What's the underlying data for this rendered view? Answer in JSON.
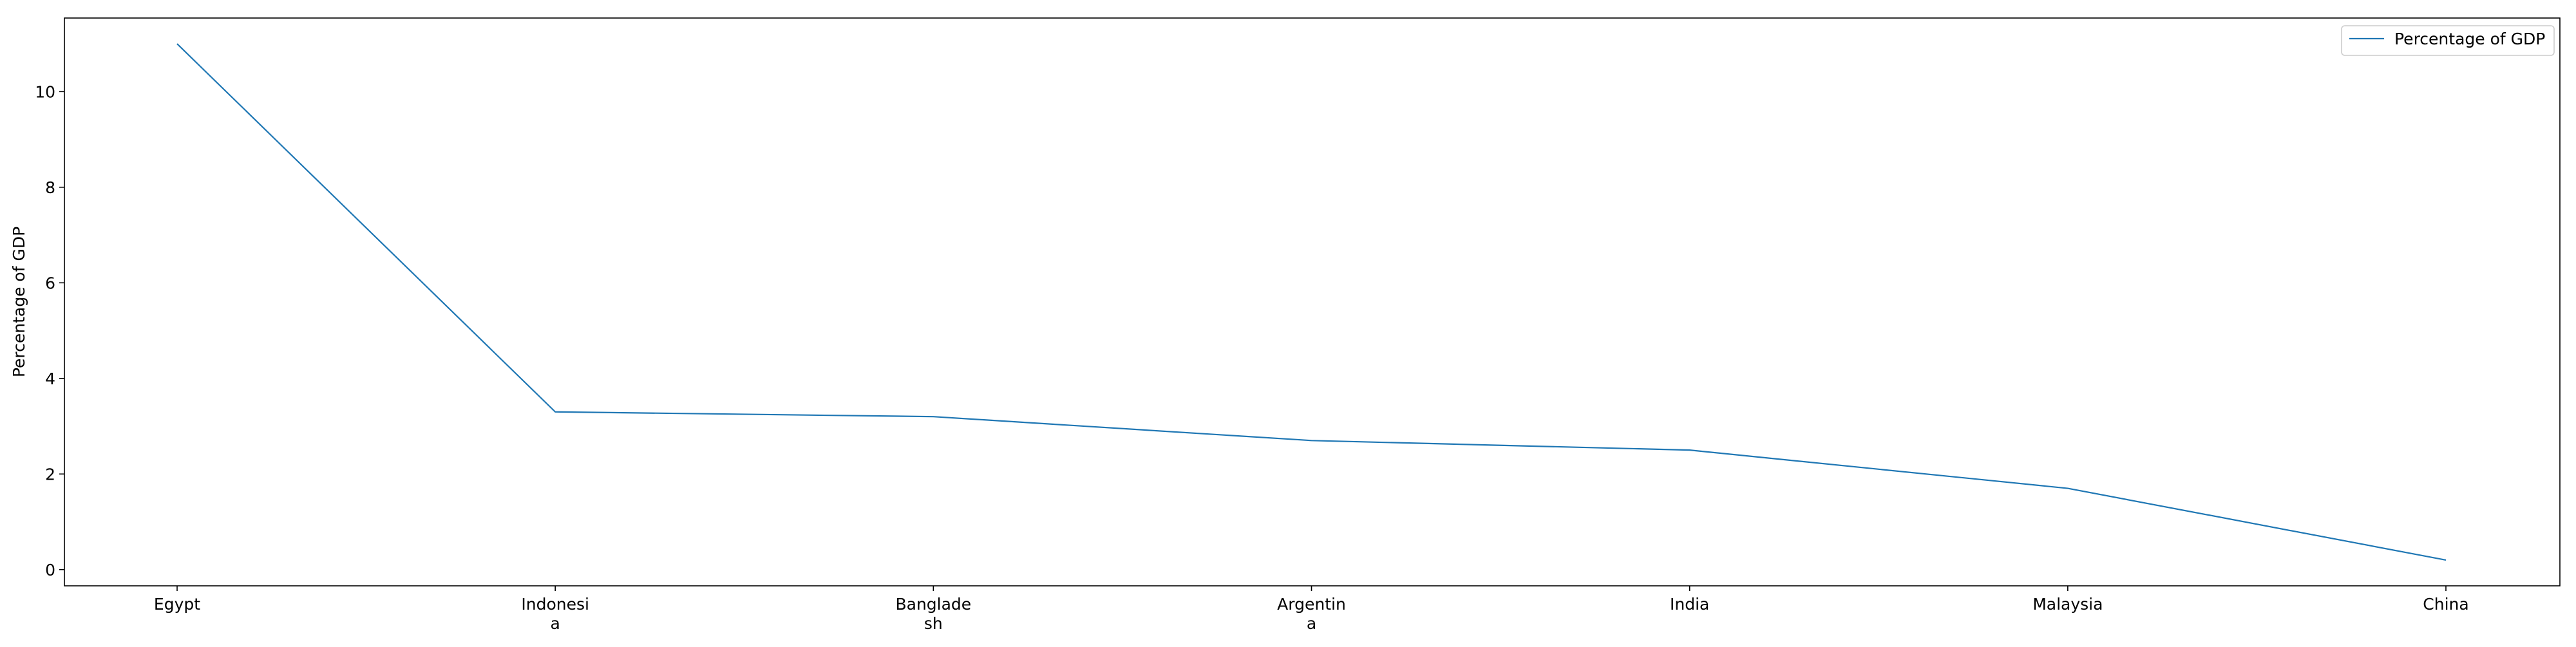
{
  "chart_data": {
    "type": "line",
    "title": "",
    "xlabel": "",
    "ylabel": "Percentage of GDP",
    "categories": [
      [
        "Egypt"
      ],
      [
        "Indonesi",
        "a"
      ],
      [
        "Banglade",
        "sh"
      ],
      [
        "Argentin",
        "a"
      ],
      [
        "India"
      ],
      [
        "Malaysia"
      ],
      [
        "China"
      ]
    ],
    "series": [
      {
        "name": "Percentage of GDP",
        "color": "#1f77b4",
        "values": [
          11.0,
          3.3,
          3.2,
          2.7,
          2.5,
          1.7,
          0.2
        ]
      }
    ],
    "ylim": [
      -0.34,
      11.54
    ],
    "yticks": [
      0,
      2,
      4,
      6,
      8,
      10
    ],
    "grid": false,
    "legend": "top-right"
  }
}
